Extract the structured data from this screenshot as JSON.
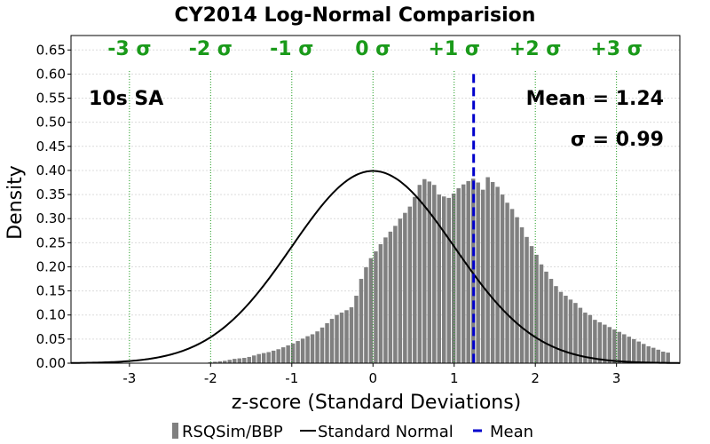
{
  "chart_data": {
    "type": "bar",
    "title": "CY2014 Log-Normal Comparision",
    "xlabel": "z-score (Standard Deviations)",
    "ylabel": "Density",
    "xlim": [
      -3.72,
      3.78
    ],
    "ylim": [
      0,
      0.68
    ],
    "x_ticks": [
      "-3",
      "-2",
      "-1",
      "0",
      "1",
      "2",
      "3"
    ],
    "y_ticks": [
      "0.00",
      "0.05",
      "0.10",
      "0.15",
      "0.20",
      "0.25",
      "0.30",
      "0.35",
      "0.40",
      "0.45",
      "0.50",
      "0.55",
      "0.60",
      "0.65"
    ],
    "sigma_labels": [
      {
        "x": -3,
        "text": "-3 σ"
      },
      {
        "x": -2,
        "text": "-2 σ"
      },
      {
        "x": -1,
        "text": "-1 σ"
      },
      {
        "x": 0,
        "text": "0 σ"
      },
      {
        "x": 1,
        "text": "+1 σ"
      },
      {
        "x": 2,
        "text": "+2 σ"
      },
      {
        "x": 3,
        "text": "+3 σ"
      }
    ],
    "annotations": {
      "period": "10s SA",
      "mean_text": "Mean = 1.24",
      "sigma_text": "σ = 0.99"
    },
    "mean": 1.24,
    "histogram": {
      "name": "RSQSim/BBP",
      "color": "#808080",
      "bin_width": 0.06,
      "bin_start": -2.03,
      "values": [
        0.002,
        0.003,
        0.004,
        0.005,
        0.007,
        0.009,
        0.01,
        0.011,
        0.013,
        0.016,
        0.019,
        0.021,
        0.023,
        0.026,
        0.029,
        0.033,
        0.037,
        0.041,
        0.046,
        0.051,
        0.056,
        0.06,
        0.066,
        0.074,
        0.083,
        0.092,
        0.1,
        0.105,
        0.11,
        0.116,
        0.14,
        0.175,
        0.199,
        0.218,
        0.232,
        0.247,
        0.261,
        0.273,
        0.285,
        0.3,
        0.312,
        0.325,
        0.345,
        0.37,
        0.382,
        0.377,
        0.37,
        0.35,
        0.346,
        0.343,
        0.352,
        0.363,
        0.371,
        0.378,
        0.383,
        0.375,
        0.36,
        0.386,
        0.376,
        0.366,
        0.35,
        0.333,
        0.32,
        0.303,
        0.282,
        0.262,
        0.243,
        0.225,
        0.205,
        0.19,
        0.175,
        0.16,
        0.148,
        0.14,
        0.132,
        0.125,
        0.115,
        0.105,
        0.1,
        0.09,
        0.085,
        0.08,
        0.075,
        0.07,
        0.065,
        0.06,
        0.055,
        0.05,
        0.045,
        0.04,
        0.035,
        0.032,
        0.028,
        0.024,
        0.022
      ]
    },
    "series": [
      {
        "name": "Standard Normal",
        "color": "#000000",
        "mean": 0,
        "sd": 1
      }
    ],
    "legend": {
      "position": "bottom",
      "items": [
        {
          "label": "RSQSim/BBP",
          "color": "#808080",
          "style": "bar"
        },
        {
          "label": "Standard Normal",
          "color": "#000000",
          "style": "line"
        },
        {
          "label": "Mean",
          "color": "#0000cc",
          "style": "dashed"
        }
      ]
    },
    "colors": {
      "sigma": "#1a9a1a",
      "mean": "#0000cc",
      "grid": "#dcdcdc"
    },
    "grid": true
  }
}
